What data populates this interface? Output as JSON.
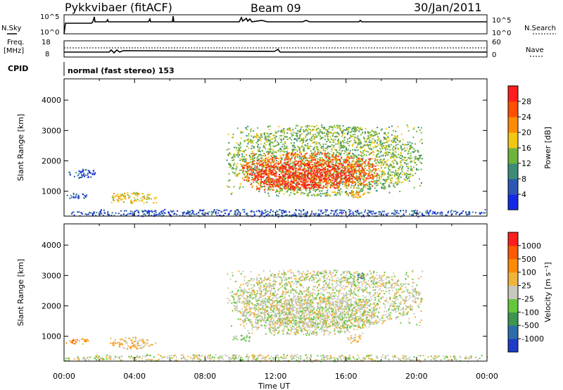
{
  "header": {
    "station": "Pykkvibaer (fitACF)",
    "beam": "Beam 09",
    "date": "30/Jan/2011"
  },
  "top_panels": {
    "nsky_label": "N.Sky",
    "nsky_ticks": [
      "10^5",
      "10^0"
    ],
    "nsearch_label": "N.Search",
    "nsearch_ticks": [
      "10^5",
      "10^0"
    ],
    "freq_label": "Freq.",
    "freq_unit": "[MHz]",
    "freq_ticks": [
      "18",
      "8"
    ],
    "nave_label": "Nave",
    "nave_ticks": [
      "60",
      "0"
    ],
    "cpid_label": "CPID",
    "cpid_text": "normal (fast stereo) 153"
  },
  "chart_data": [
    {
      "type": "heatmap",
      "name": "power",
      "title": "",
      "xlabel": "Time UT",
      "ylabel": "Slant Range [km]",
      "x_ticks": [
        "00:00",
        "04:00",
        "08:00",
        "12:00",
        "16:00",
        "20:00",
        "00:00"
      ],
      "xlim_hours": [
        0,
        24
      ],
      "y_ticks": [
        "1000",
        "2000",
        "3000",
        "4000"
      ],
      "ylim": [
        180,
        4700
      ],
      "colorbar": {
        "label": "Power [dB]",
        "ticks": [
          "4",
          "8",
          "12",
          "16",
          "20",
          "24",
          "28"
        ],
        "colors": [
          "#1428e6",
          "#2d55b4",
          "#3c8c78",
          "#6eb43c",
          "#f0c814",
          "#ff8c00",
          "#ff5000",
          "#ff1e1e"
        ]
      },
      "regions": [
        {
          "t0": 9.2,
          "t1": 20.3,
          "r0": 850,
          "r1": 3200,
          "level": 3
        },
        {
          "t0": 10.0,
          "t1": 17.8,
          "r0": 1050,
          "r1": 2300,
          "level": 6
        },
        {
          "t0": 10.7,
          "t1": 16.4,
          "r0": 1100,
          "r1": 1950,
          "level": 7
        },
        {
          "t0": 2.6,
          "t1": 5.2,
          "r0": 620,
          "r1": 980,
          "level": 4
        },
        {
          "t0": 0.1,
          "t1": 1.3,
          "r0": 750,
          "r1": 950,
          "level": 1
        },
        {
          "t0": 0.1,
          "t1": 1.8,
          "r0": 1450,
          "r1": 1750,
          "level": 1
        },
        {
          "t0": 16.0,
          "t1": 17.0,
          "r0": 800,
          "r1": 1050,
          "level": 5
        },
        {
          "t0": 0.0,
          "t1": 24.0,
          "r0": 180,
          "r1": 420,
          "level": 1
        }
      ]
    },
    {
      "type": "heatmap",
      "name": "velocity",
      "title": "",
      "xlabel": "Time UT",
      "ylabel": "Slant Range [km]",
      "x_ticks": [
        "00:00",
        "04:00",
        "08:00",
        "12:00",
        "16:00",
        "20:00",
        "00:00"
      ],
      "xlim_hours": [
        0,
        24
      ],
      "y_ticks": [
        "1000",
        "2000",
        "3000",
        "4000"
      ],
      "ylim": [
        180,
        4700
      ],
      "colorbar": {
        "label": "Velocity [m s⁻¹]",
        "ticks": [
          "1000",
          "500",
          "100",
          "25",
          "-25",
          "-100",
          "-500",
          "-1000"
        ],
        "colors": [
          "#1e3cc8",
          "#2c6eaa",
          "#3c9650",
          "#64c83c",
          "#c8c8be",
          "#f0b43c",
          "#ff8c00",
          "#ff5a00",
          "#ff1e1e"
        ]
      },
      "regions": [
        {
          "t0": 9.2,
          "t1": 20.3,
          "r0": 1300,
          "r1": 3200,
          "level": 4
        },
        {
          "t0": 10.0,
          "t1": 17.8,
          "r0": 1050,
          "r1": 2300,
          "level": 4
        },
        {
          "t0": 2.6,
          "t1": 5.2,
          "r0": 600,
          "r1": 980,
          "level": 5
        },
        {
          "t0": 0.1,
          "t1": 1.4,
          "r0": 750,
          "r1": 950,
          "level": 6
        },
        {
          "t0": 9.5,
          "t1": 10.6,
          "r0": 850,
          "r1": 1050,
          "level": 3
        },
        {
          "t0": 16.0,
          "t1": 17.0,
          "r0": 800,
          "r1": 1050,
          "level": 5
        },
        {
          "t0": 16.5,
          "t1": 17.0,
          "r0": 2850,
          "r1": 3150,
          "level": 2
        },
        {
          "t0": 0.0,
          "t1": 24.0,
          "r0": 180,
          "r1": 420,
          "level": 4
        }
      ]
    }
  ]
}
